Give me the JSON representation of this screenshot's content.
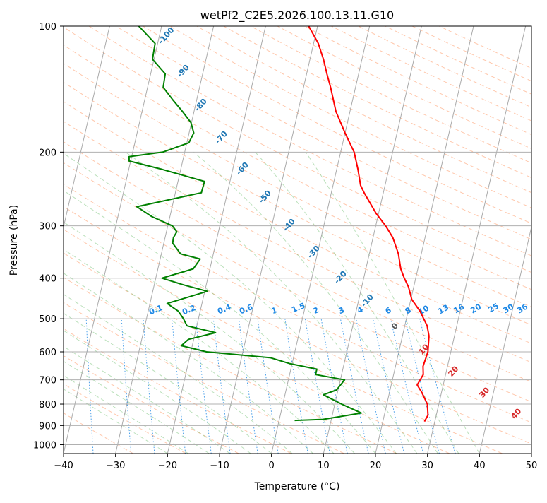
{
  "chart_data": {
    "type": "skew-t",
    "title": "wetPf2_C2E5.2026.100.13.11.G10",
    "xlabel": "Temperature (°C)",
    "ylabel": "Pressure (hPa)",
    "xlim": [
      -40,
      50
    ],
    "ylim": [
      1050,
      100
    ],
    "x_ticks": [
      -40,
      -30,
      -20,
      -10,
      0,
      10,
      20,
      30,
      40,
      50
    ],
    "y_ticks": [
      100,
      200,
      300,
      400,
      500,
      600,
      700,
      800,
      900,
      1000
    ],
    "colors": {
      "temperature": "#ff0000",
      "dewpoint": "#008000",
      "isotherm": "#aaaaaa",
      "dry_adiabat": "#ff9966",
      "moist_adiabat": "#66bb66",
      "mixing_ratio": "#1e88e5",
      "dry_label": "#d62728",
      "moist_label": "#1f77b4"
    },
    "series": [
      {
        "name": "temperature",
        "points": [
          [
            28,
            880
          ],
          [
            28.4,
            850
          ],
          [
            27.8,
            800
          ],
          [
            26.2,
            750
          ],
          [
            25,
            720
          ],
          [
            25.7,
            680
          ],
          [
            25.3,
            650
          ],
          [
            25.6,
            600
          ],
          [
            25.1,
            550
          ],
          [
            24.3,
            520
          ],
          [
            22.3,
            480
          ],
          [
            20.2,
            450
          ],
          [
            19,
            420
          ],
          [
            17.8,
            400
          ],
          [
            16.7,
            380
          ],
          [
            15.6,
            350
          ],
          [
            13.8,
            320
          ],
          [
            11.9,
            300
          ],
          [
            9.5,
            280
          ],
          [
            7.4,
            260
          ],
          [
            6.3,
            250
          ],
          [
            5.3,
            240
          ],
          [
            4.1,
            220
          ],
          [
            2.6,
            200
          ],
          [
            0,
            180
          ],
          [
            -2.7,
            160
          ],
          [
            -4.8,
            140
          ],
          [
            -6.1,
            130
          ],
          [
            -7.4,
            120
          ],
          [
            -9.1,
            110
          ],
          [
            -11.7,
            100
          ]
        ]
      },
      {
        "name": "dewpoint",
        "points": [
          [
            3,
            875
          ],
          [
            8.4,
            870
          ],
          [
            15.5,
            840
          ],
          [
            11.3,
            800
          ],
          [
            7.4,
            760
          ],
          [
            9.7,
            740
          ],
          [
            10.8,
            700
          ],
          [
            5,
            680
          ],
          [
            5,
            660
          ],
          [
            -0.5,
            640
          ],
          [
            -4.4,
            620
          ],
          [
            -17,
            600
          ],
          [
            -22.1,
            580
          ],
          [
            -21,
            560
          ],
          [
            -16.1,
            540
          ],
          [
            -21.9,
            520
          ],
          [
            -22.9,
            500
          ],
          [
            -24.2,
            480
          ],
          [
            -26.7,
            460
          ],
          [
            -19.5,
            430
          ],
          [
            -24.4,
            415
          ],
          [
            -28.8,
            400
          ],
          [
            -23.2,
            380
          ],
          [
            -22.3,
            360
          ],
          [
            -26.3,
            350
          ],
          [
            -28.3,
            330
          ],
          [
            -28.4,
            320
          ],
          [
            -28,
            310
          ],
          [
            -29.1,
            300
          ],
          [
            -33.5,
            285
          ],
          [
            -36.8,
            270
          ],
          [
            -25,
            250
          ],
          [
            -24.9,
            235
          ],
          [
            -33.5,
            220
          ],
          [
            -40.3,
            210
          ],
          [
            -40.5,
            205
          ],
          [
            -34.2,
            200
          ],
          [
            -29.6,
            190
          ],
          [
            -29.1,
            180
          ],
          [
            -30.1,
            170
          ],
          [
            -32.2,
            160
          ],
          [
            -34.6,
            150
          ],
          [
            -37,
            140
          ],
          [
            -37.2,
            130
          ],
          [
            -40.3,
            120
          ],
          [
            -40.5,
            110
          ],
          [
            -44.4,
            100
          ]
        ]
      }
    ],
    "dry_adiabat_labels": [
      "-100",
      "-90",
      "-80",
      "-70",
      "-60",
      "-50",
      "-40",
      "-30",
      "-20",
      "-10",
      "0",
      "10",
      "20",
      "30",
      "40"
    ],
    "moist_adiabat_labels": [
      "4",
      "6",
      "8",
      "10",
      "13",
      "16",
      "20",
      "25",
      "30",
      "36"
    ],
    "mixing_ratio_labels": [
      "0.1",
      "0.2",
      "0.4",
      "0.6",
      "1",
      "1.5",
      "2",
      "3"
    ]
  }
}
